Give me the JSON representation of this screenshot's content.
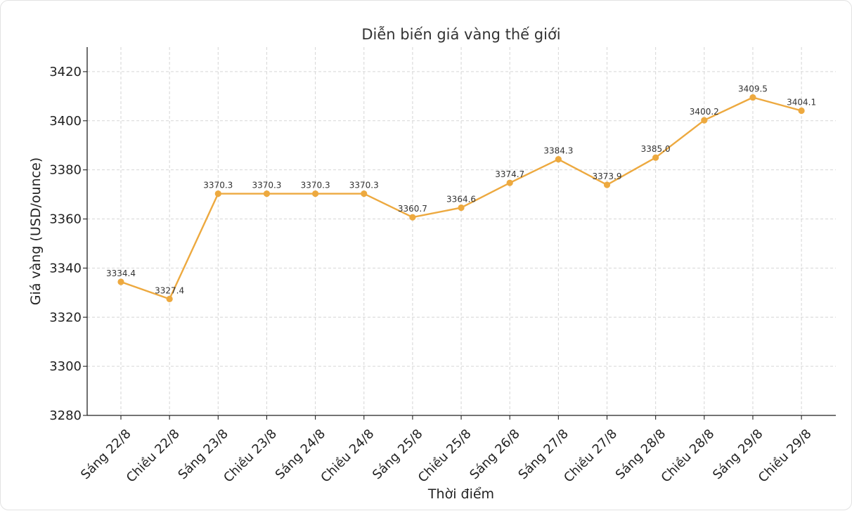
{
  "chart_data": {
    "type": "line",
    "title": "Diễn biến giá vàng thế giới",
    "xlabel": "Thời điểm",
    "ylabel": "Giá vàng (USD/ounce)",
    "ylim": [
      3280,
      3430
    ],
    "yticks": [
      3280,
      3300,
      3320,
      3340,
      3360,
      3380,
      3400,
      3420
    ],
    "grid": true,
    "categories": [
      "Sáng 22/8",
      "Chiều 22/8",
      "Sáng 23/8",
      "Chiều 23/8",
      "Sáng 24/8",
      "Chiều 24/8",
      "Sáng 25/8",
      "Chiều 25/8",
      "Sáng 26/8",
      "Sáng 27/8",
      "Chiều 27/8",
      "Sáng 28/8",
      "Chiều 28/8",
      "Sáng 29/8",
      "Chiều 29/8"
    ],
    "values": [
      3334.4,
      3327.4,
      3370.3,
      3370.3,
      3370.3,
      3370.3,
      3360.7,
      3364.6,
      3374.7,
      3384.3,
      3373.9,
      3385.0,
      3400.2,
      3409.5,
      3404.1
    ],
    "data_labels": [
      "3334.4",
      "3327.4",
      "3370.3",
      "3370.3",
      "3370.3",
      "3370.3",
      "3360.7",
      "3364.6",
      "3374.7",
      "3384.3",
      "3373.9",
      "3385.0",
      "3400.2",
      "3409.5",
      "3404.1"
    ],
    "line_color": "#EDA93F"
  }
}
